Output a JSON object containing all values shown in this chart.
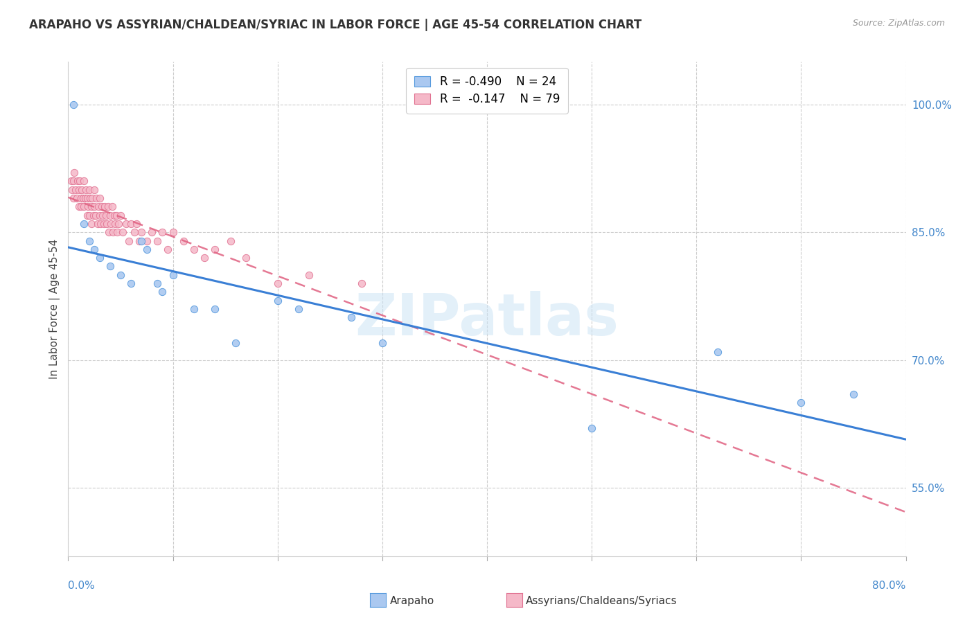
{
  "title": "ARAPAHO VS ASSYRIAN/CHALDEAN/SYRIAC IN LABOR FORCE | AGE 45-54 CORRELATION CHART",
  "source": "Source: ZipAtlas.com",
  "ylabel": "In Labor Force | Age 45-54",
  "legend_label1": "Arapaho",
  "legend_label2": "Assyrians/Chaldeans/Syriacs",
  "R1": -0.49,
  "N1": 24,
  "R2": -0.147,
  "N2": 79,
  "color1": "#aac8f0",
  "color2": "#f5b8c8",
  "edge_color1": "#5599dd",
  "edge_color2": "#e07090",
  "line_color1": "#3a7fd5",
  "line_color2": "#e06080",
  "watermark": "ZIPatlas",
  "xlim": [
    0.0,
    0.8
  ],
  "ylim": [
    0.47,
    1.05
  ],
  "right_yticks": [
    0.55,
    0.7,
    0.85,
    1.0
  ],
  "right_yticklabels": [
    "55.0%",
    "70.0%",
    "85.0%",
    "100.0%"
  ],
  "arapaho_x": [
    0.005,
    0.015,
    0.02,
    0.025,
    0.03,
    0.04,
    0.05,
    0.06,
    0.07,
    0.075,
    0.085,
    0.09,
    0.1,
    0.12,
    0.14,
    0.16,
    0.2,
    0.22,
    0.27,
    0.3,
    0.5,
    0.62,
    0.7,
    0.75
  ],
  "arapaho_y": [
    1.0,
    0.86,
    0.84,
    0.83,
    0.82,
    0.81,
    0.8,
    0.79,
    0.84,
    0.83,
    0.79,
    0.78,
    0.8,
    0.76,
    0.76,
    0.72,
    0.77,
    0.76,
    0.75,
    0.72,
    0.62,
    0.71,
    0.65,
    0.66
  ],
  "assyrian_x": [
    0.003,
    0.004,
    0.005,
    0.005,
    0.006,
    0.007,
    0.008,
    0.009,
    0.01,
    0.01,
    0.011,
    0.012,
    0.012,
    0.013,
    0.014,
    0.015,
    0.015,
    0.016,
    0.017,
    0.018,
    0.018,
    0.019,
    0.02,
    0.02,
    0.021,
    0.022,
    0.022,
    0.023,
    0.024,
    0.025,
    0.025,
    0.026,
    0.027,
    0.028,
    0.029,
    0.03,
    0.03,
    0.031,
    0.032,
    0.033,
    0.034,
    0.035,
    0.036,
    0.037,
    0.038,
    0.039,
    0.04,
    0.041,
    0.042,
    0.043,
    0.044,
    0.045,
    0.046,
    0.047,
    0.048,
    0.05,
    0.052,
    0.055,
    0.058,
    0.06,
    0.063,
    0.065,
    0.068,
    0.07,
    0.075,
    0.08,
    0.085,
    0.09,
    0.095,
    0.1,
    0.11,
    0.12,
    0.13,
    0.14,
    0.155,
    0.17,
    0.2,
    0.23,
    0.28
  ],
  "assyrian_y": [
    0.91,
    0.9,
    0.91,
    0.89,
    0.92,
    0.9,
    0.89,
    0.91,
    0.9,
    0.88,
    0.91,
    0.89,
    0.88,
    0.9,
    0.89,
    0.91,
    0.88,
    0.89,
    0.9,
    0.87,
    0.89,
    0.88,
    0.9,
    0.87,
    0.89,
    0.88,
    0.86,
    0.89,
    0.87,
    0.9,
    0.88,
    0.87,
    0.89,
    0.86,
    0.88,
    0.87,
    0.89,
    0.86,
    0.88,
    0.87,
    0.86,
    0.88,
    0.87,
    0.86,
    0.88,
    0.85,
    0.87,
    0.86,
    0.88,
    0.85,
    0.87,
    0.86,
    0.87,
    0.85,
    0.86,
    0.87,
    0.85,
    0.86,
    0.84,
    0.86,
    0.85,
    0.86,
    0.84,
    0.85,
    0.84,
    0.85,
    0.84,
    0.85,
    0.83,
    0.85,
    0.84,
    0.83,
    0.82,
    0.83,
    0.84,
    0.82,
    0.79,
    0.8,
    0.79
  ]
}
